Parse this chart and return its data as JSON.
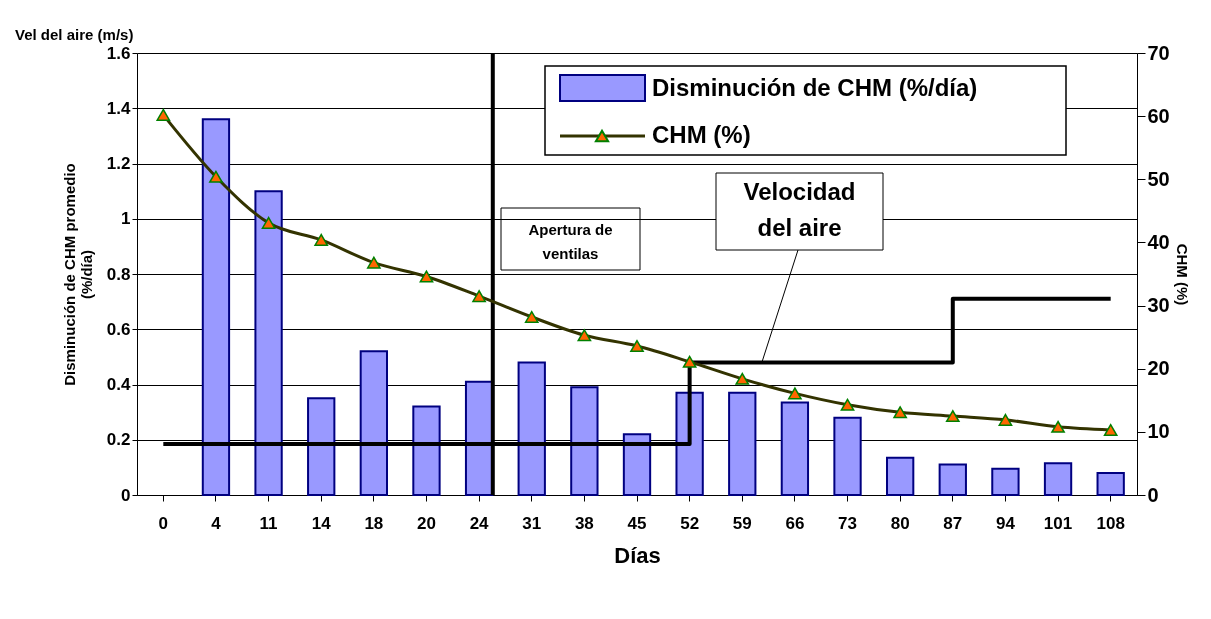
{
  "chart_data": {
    "type": "bar",
    "xlabel": "Días",
    "ylabel": "Disminución de CHM promedio (%/día)",
    "y2label": "CHM (%)",
    "categories": [
      "0",
      "4",
      "11",
      "14",
      "18",
      "20",
      "24",
      "31",
      "38",
      "45",
      "52",
      "59",
      "66",
      "73",
      "80",
      "87",
      "94",
      "101",
      "108"
    ],
    "series": [
      {
        "name": "Disminución de CHM (%/día)",
        "type": "bar",
        "color": "#9999ff",
        "values": [
          null,
          1.36,
          1.1,
          0.35,
          0.52,
          0.32,
          0.41,
          0.48,
          0.39,
          0.22,
          0.37,
          0.37,
          0.335,
          0.28,
          0.135,
          0.11,
          0.095,
          0.115,
          0.08
        ]
      },
      {
        "name": "CHM (%)",
        "type": "line",
        "axis": "y2",
        "color": "#333300",
        "marker": "triangle",
        "values": [
          60.2,
          50.4,
          43.1,
          40.4,
          36.8,
          34.6,
          31.5,
          28.2,
          25.3,
          23.6,
          21.1,
          18.4,
          16.1,
          14.3,
          13.1,
          12.5,
          11.9,
          10.8,
          10.3
        ]
      },
      {
        "name": "Velocidad del aire",
        "type": "step",
        "color": "#000000",
        "values": [
          0.185,
          0.185,
          0.185,
          0.185,
          0.185,
          0.185,
          0.185,
          0.185,
          0.185,
          0.185,
          0.48,
          0.48,
          0.48,
          0.48,
          0.48,
          0.71,
          0.71,
          0.71,
          0.71
        ]
      }
    ],
    "ylim": [
      0,
      1.6
    ],
    "yticks": [
      0,
      0.2,
      0.4,
      0.6,
      0.8,
      1,
      1.2,
      1.4,
      1.6
    ],
    "y2lim": [
      0,
      70
    ],
    "y2ticks": [
      0,
      10,
      20,
      30,
      40,
      50,
      60,
      70
    ],
    "ref_lines": [
      {
        "axis": "x",
        "value": "24",
        "label": "Apertura de ventilas",
        "color": "#000000"
      }
    ],
    "annotations": [
      "Vel del aire (m/s)"
    ],
    "grid": "y",
    "legend": "top right"
  }
}
